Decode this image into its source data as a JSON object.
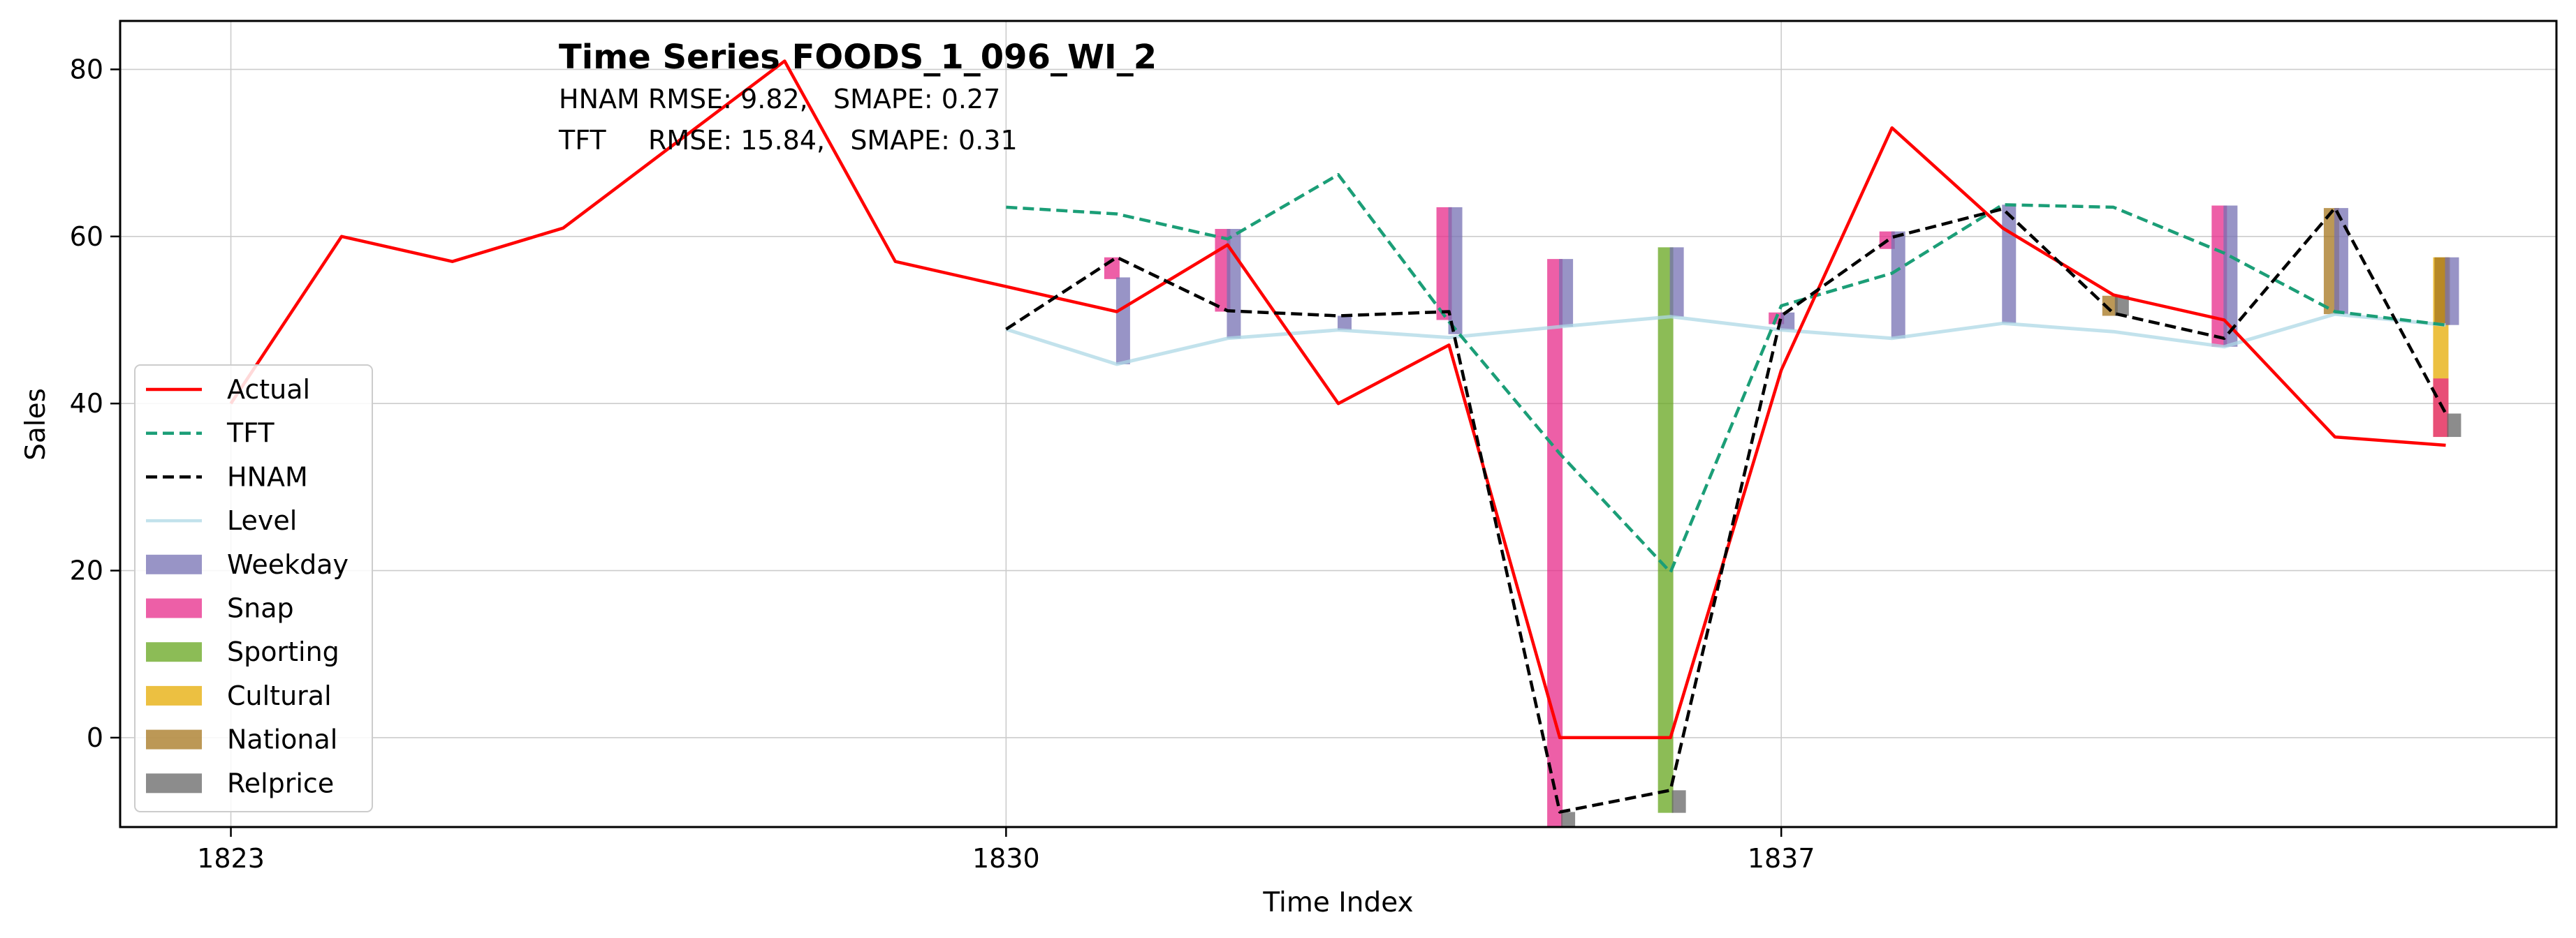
{
  "chart_data": {
    "type": "line",
    "title": "Time Series FOODS_1_096_WI_2",
    "subtitle_lines": [
      "HNAM RMSE: 9.82,   SMAPE: 0.27",
      "TFT     RMSE: 15.84,   SMAPE: 0.31"
    ],
    "xlabel": "Time Index",
    "ylabel": "Sales",
    "xlim": [
      1822,
      1844
    ],
    "ylim": [
      -10.7,
      85.8
    ],
    "xticks": [
      1823,
      1830,
      1837
    ],
    "yticks": [
      0,
      20,
      40,
      60,
      80
    ],
    "grid": true,
    "legend_position": "lower-left",
    "series": [
      {
        "name": "Actual",
        "style": "solid",
        "color": "#ff0000",
        "x": [
          1823,
          1824,
          1825,
          1826,
          1827,
          1828,
          1829,
          1830,
          1831,
          1832,
          1833,
          1834,
          1835,
          1836,
          1837,
          1838,
          1839,
          1840,
          1841,
          1842,
          1843
        ],
        "y": [
          40,
          60,
          57,
          61,
          71,
          81,
          57,
          54,
          51,
          59,
          40,
          47,
          0,
          0,
          44,
          73,
          61,
          53,
          50,
          36,
          35
        ]
      },
      {
        "name": "TFT",
        "style": "dashed",
        "color": "#1b9e77",
        "x": [
          1830,
          1831,
          1832,
          1833,
          1834,
          1835,
          1836,
          1837,
          1838,
          1839,
          1840,
          1841,
          1842,
          1843
        ],
        "y": [
          63.5,
          62.7,
          59.7,
          67.4,
          49.8,
          34.0,
          19.8,
          51.7,
          55.6,
          63.8,
          63.5,
          58.0,
          51.0,
          49.4
        ]
      },
      {
        "name": "HNAM",
        "style": "dashed",
        "color": "#000000",
        "x": [
          1830,
          1831,
          1832,
          1833,
          1834,
          1835,
          1836,
          1837,
          1838,
          1839,
          1840,
          1841,
          1842,
          1843
        ],
        "y": [
          48.9,
          57.5,
          51.1,
          50.5,
          51.0,
          -8.9,
          -6.3,
          50.5,
          59.9,
          63.3,
          50.8,
          47.8,
          63.4,
          38.8
        ]
      },
      {
        "name": "Level",
        "style": "solid",
        "color": "#add8e6",
        "x": [
          1830,
          1831,
          1832,
          1833,
          1834,
          1835,
          1836,
          1837,
          1838,
          1839,
          1840,
          1841,
          1842,
          1843
        ],
        "y": [
          48.9,
          44.7,
          47.8,
          48.8,
          47.9,
          49.2,
          50.4,
          48.8,
          47.8,
          49.6,
          48.6,
          46.8,
          50.7,
          49.4
        ]
      }
    ],
    "component_bars": [
      {
        "name": "Weekday",
        "color": "#7570b3"
      },
      {
        "name": "Snap",
        "color": "#e7298a"
      },
      {
        "name": "Sporting",
        "color": "#66a61e"
      },
      {
        "name": "Cultural",
        "color": "#e6ab02"
      },
      {
        "name": "National",
        "color": "#a6761d"
      },
      {
        "name": "Relprice",
        "color": "#666666"
      }
    ],
    "bars": [
      {
        "x": 1831,
        "component": "Snap",
        "bottom": 54.9,
        "top": 57.5
      },
      {
        "x": 1831,
        "component": "Weekday",
        "bottom": 44.7,
        "top": 55.1
      },
      {
        "x": 1832,
        "component": "Snap",
        "bottom": 51.0,
        "top": 60.9
      },
      {
        "x": 1832,
        "component": "Weekday",
        "bottom": 47.8,
        "top": 60.9
      },
      {
        "x": 1833,
        "component": "Weekday",
        "bottom": 48.8,
        "top": 50.5
      },
      {
        "x": 1834,
        "component": "Snap",
        "bottom": 50.0,
        "top": 63.5
      },
      {
        "x": 1834,
        "component": "Weekday",
        "bottom": 48.3,
        "top": 63.5
      },
      {
        "x": 1835,
        "component": "Snap",
        "bottom": -10.7,
        "top": 57.3
      },
      {
        "x": 1835,
        "component": "Weekday",
        "bottom": 49.2,
        "top": 57.3
      },
      {
        "x": 1835,
        "component": "Relprice",
        "bottom": -10.7,
        "top": -8.9
      },
      {
        "x": 1836,
        "component": "Sporting",
        "bottom": -9.0,
        "top": 58.7
      },
      {
        "x": 1836,
        "component": "Weekday",
        "bottom": 50.4,
        "top": 58.7
      },
      {
        "x": 1836,
        "component": "Relprice",
        "bottom": -9.0,
        "top": -6.3
      },
      {
        "x": 1837,
        "component": "Snap",
        "bottom": 49.5,
        "top": 50.9
      },
      {
        "x": 1837,
        "component": "Weekday",
        "bottom": 48.8,
        "top": 50.9
      },
      {
        "x": 1838,
        "component": "Snap",
        "bottom": 58.5,
        "top": 60.6
      },
      {
        "x": 1838,
        "component": "Weekday",
        "bottom": 47.8,
        "top": 60.6
      },
      {
        "x": 1839,
        "component": "Weekday",
        "bottom": 49.6,
        "top": 63.8
      },
      {
        "x": 1840,
        "component": "National",
        "bottom": 50.5,
        "top": 52.9
      },
      {
        "x": 1840,
        "component": "Relprice",
        "bottom": 50.5,
        "top": 52.9
      },
      {
        "x": 1841,
        "component": "Snap",
        "bottom": 46.8,
        "top": 63.7
      },
      {
        "x": 1841,
        "component": "Weekday",
        "bottom": 46.8,
        "top": 63.7
      },
      {
        "x": 1842,
        "component": "National",
        "bottom": 50.7,
        "top": 63.4
      },
      {
        "x": 1842,
        "component": "Weekday",
        "bottom": 50.7,
        "top": 63.4
      },
      {
        "x": 1843,
        "component": "Cultural",
        "bottom": 36.0,
        "top": 57.5
      },
      {
        "x": 1843,
        "component": "Snap",
        "bottom": 36.0,
        "top": 43.0
      },
      {
        "x": 1843,
        "component": "National",
        "bottom": 49.4,
        "top": 57.5
      },
      {
        "x": 1843,
        "component": "Weekday",
        "bottom": 49.4,
        "top": 57.5
      },
      {
        "x": 1843,
        "component": "Relprice",
        "bottom": 36.0,
        "top": 38.8
      }
    ]
  }
}
